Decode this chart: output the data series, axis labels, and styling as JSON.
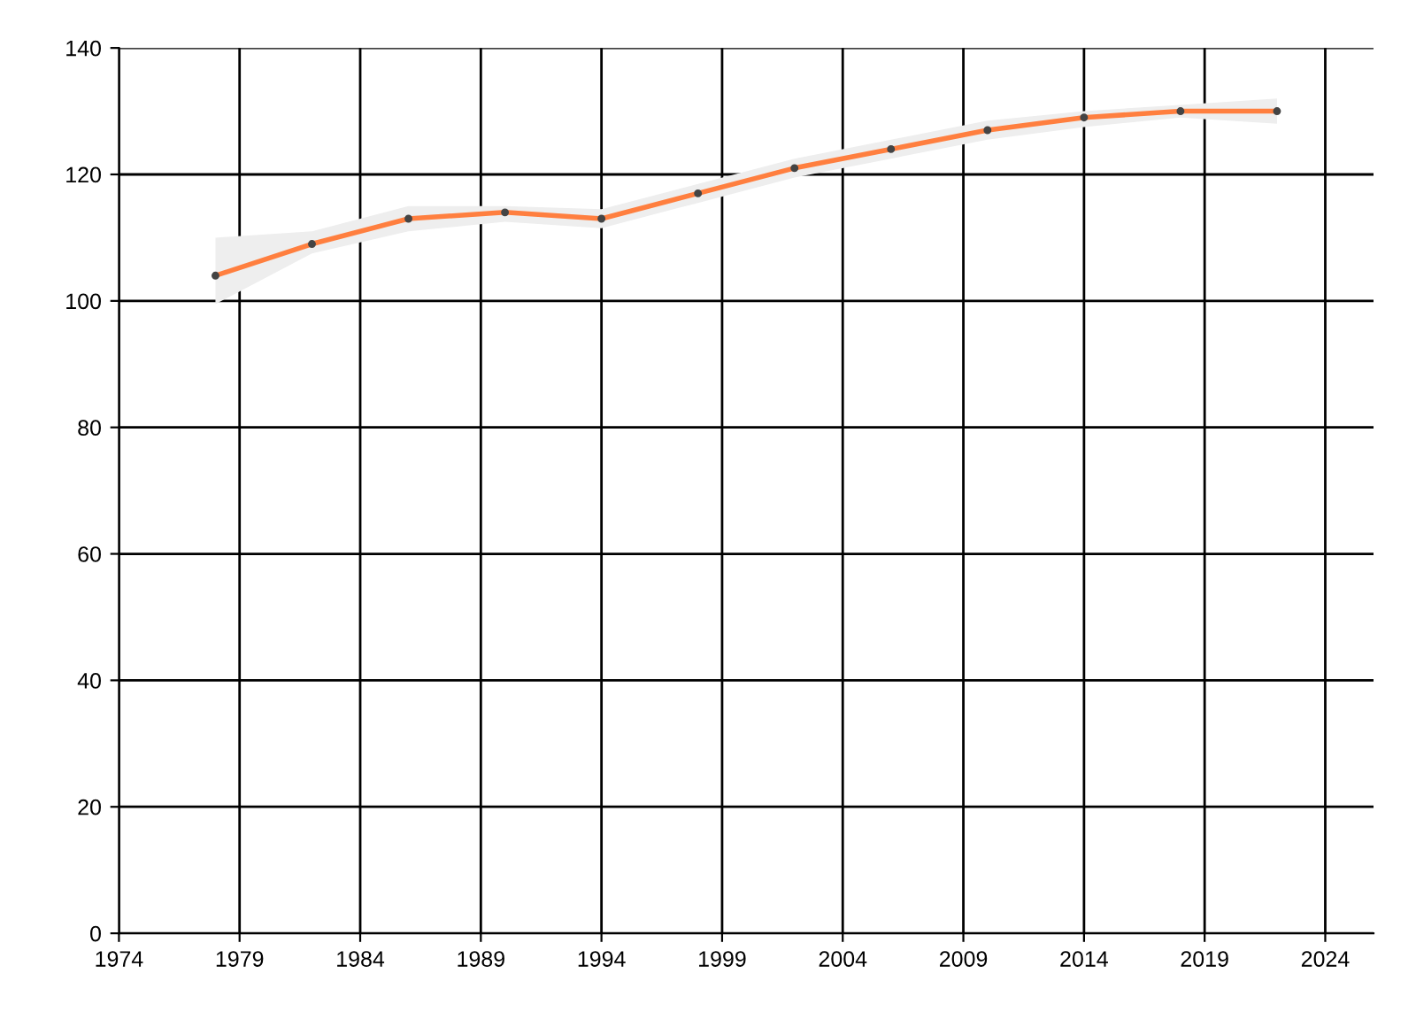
{
  "chart_data": {
    "type": "line",
    "x": [
      1978,
      1982,
      1986,
      1990,
      1994,
      1998,
      2002,
      2006,
      2010,
      2014,
      2018,
      2022
    ],
    "series": [
      {
        "color": "#ff7f3f",
        "values": [
          104,
          109,
          113,
          114,
          113,
          117,
          121,
          124,
          127,
          129,
          130,
          130
        ],
        "lower": [
          99.5,
          107.5,
          111,
          112.5,
          111.5,
          115.5,
          119.5,
          122.5,
          125.5,
          127.5,
          129,
          128
        ],
        "upper": [
          110,
          111,
          115,
          115,
          114.5,
          118.5,
          122.5,
          125.5,
          128.5,
          130,
          131,
          132
        ]
      }
    ],
    "xlim": [
      1974,
      2026
    ],
    "xticks": [
      1974,
      1979,
      1984,
      1989,
      1994,
      1999,
      2004,
      2009,
      2014,
      2019,
      2024
    ],
    "ylim": [
      0,
      140
    ],
    "yticks": [
      0,
      20,
      40,
      60,
      80,
      100,
      120,
      140
    ],
    "grid": true,
    "marker": "circle",
    "line_style": "solid",
    "legend": false
  }
}
